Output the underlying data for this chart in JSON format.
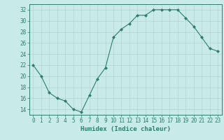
{
  "x": [
    0,
    1,
    2,
    3,
    4,
    5,
    6,
    7,
    8,
    9,
    10,
    11,
    12,
    13,
    14,
    15,
    16,
    17,
    18,
    19,
    20,
    21,
    22,
    23
  ],
  "y": [
    22,
    20,
    17,
    16,
    15.5,
    14,
    13.5,
    16.5,
    19.5,
    21.5,
    27,
    28.5,
    29.5,
    31,
    31,
    32,
    32,
    32,
    32,
    30.5,
    29,
    27,
    25,
    24.5
  ],
  "line_color": "#2e7d6e",
  "marker": "D",
  "marker_size": 2,
  "bg_color": "#c8eae8",
  "grid_color": "#b8d8d5",
  "xlabel": "Humidex (Indice chaleur)",
  "ylim": [
    13,
    33
  ],
  "xlim": [
    -0.5,
    23.5
  ],
  "yticks": [
    14,
    16,
    18,
    20,
    22,
    24,
    26,
    28,
    30,
    32
  ],
  "xticks": [
    0,
    1,
    2,
    3,
    4,
    5,
    6,
    7,
    8,
    9,
    10,
    11,
    12,
    13,
    14,
    15,
    16,
    17,
    18,
    19,
    20,
    21,
    22,
    23
  ],
  "tick_color": "#2e7d6e",
  "axis_color": "#2e7d6e",
  "label_fontsize": 6.5,
  "tick_fontsize": 5.5
}
